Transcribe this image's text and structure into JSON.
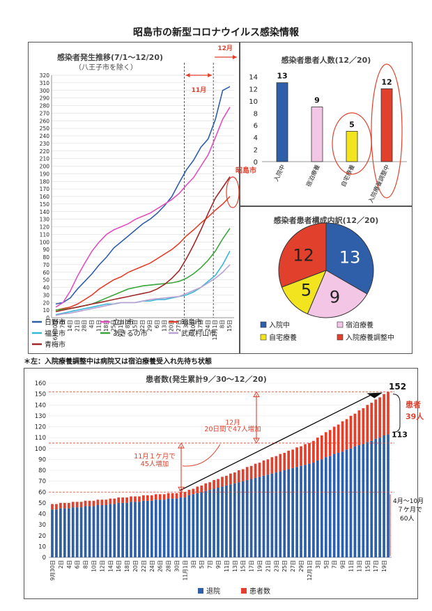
{
  "page_title": "昭島市の新型コロナウイルス感染情報",
  "note": "＊左：入院療養調整中は病院又は宿泊療養受入れ先待ち状態",
  "chart_data": [
    {
      "type": "line",
      "title": "感染者発生推移(7/1～12/20)",
      "subtitle": "（八王子市を除く）",
      "ylim": [
        0,
        320
      ],
      "yticks": [
        0,
        10,
        20,
        30,
        40,
        50,
        60,
        70,
        80,
        90,
        100,
        110,
        120,
        130,
        140,
        150,
        160,
        170,
        180,
        190,
        200,
        210,
        220,
        230,
        240,
        250,
        260,
        270,
        280,
        290,
        300,
        310,
        320
      ],
      "x_tick_labels": [
        "6月30日",
        "7日",
        "14日",
        "21日",
        "28日",
        "4日",
        "11日",
        "18日",
        "25日",
        "9月1日",
        "8日",
        "15日",
        "22日",
        "29日",
        "6日",
        "13日",
        "20日",
        "27日",
        "3日",
        "10日",
        "17日",
        "24日",
        "12月1日",
        "8日",
        "15日"
      ],
      "annotations": {
        "nov": "11月",
        "dec": "12月",
        "akishima": "昭島市"
      },
      "series": [
        {
          "name": "日野市",
          "color": "#2e5fa8",
          "values": [
            18,
            20,
            26,
            38,
            48,
            58,
            70,
            80,
            92,
            100,
            108,
            116,
            124,
            130,
            138,
            148,
            160,
            178,
            195,
            208,
            225,
            236,
            262,
            300,
            305
          ]
        },
        {
          "name": "立川市",
          "color": "#e050c0",
          "values": [
            14,
            20,
            35,
            55,
            72,
            88,
            100,
            110,
            116,
            120,
            124,
            130,
            134,
            138,
            144,
            150,
            156,
            164,
            175,
            185,
            200,
            215,
            238,
            262,
            278
          ]
        },
        {
          "name": "昭島市",
          "color": "#e0402c",
          "values": [
            10,
            12,
            14,
            18,
            24,
            30,
            38,
            44,
            50,
            54,
            60,
            64,
            68,
            72,
            78,
            84,
            90,
            98,
            108,
            116,
            125,
            133,
            142,
            150,
            160
          ]
        },
        {
          "name": "福生市",
          "color": "#35b8d8",
          "values": [
            4,
            6,
            8,
            10,
            12,
            14,
            16,
            18,
            18,
            20,
            20,
            20,
            22,
            22,
            24,
            24,
            26,
            28,
            30,
            34,
            40,
            48,
            56,
            70,
            88
          ]
        },
        {
          "name": "あきるの市",
          "color": "#3aa53a",
          "values": [
            10,
            11,
            12,
            14,
            16,
            18,
            22,
            26,
            30,
            34,
            38,
            40,
            42,
            43,
            44,
            45,
            46,
            48,
            52,
            58,
            66,
            76,
            88,
            104,
            118
          ]
        },
        {
          "name": "武蔵村山市",
          "color": "#b8a0d0",
          "values": [
            3,
            5,
            6,
            8,
            10,
            12,
            14,
            16,
            18,
            20,
            20,
            20,
            22,
            24,
            25,
            26,
            27,
            28,
            32,
            36,
            40,
            46,
            52,
            60,
            70
          ]
        },
        {
          "name": "青梅市",
          "color": "#a02828",
          "values": [
            8,
            10,
            12,
            14,
            16,
            18,
            20,
            22,
            24,
            26,
            28,
            30,
            32,
            34,
            38,
            44,
            52,
            62,
            78,
            96,
            116,
            138,
            158,
            172,
            186
          ]
        }
      ]
    },
    {
      "type": "bar",
      "title": "感染者患者人数(12／20)",
      "ylim": [
        0,
        14
      ],
      "yticks": [
        0,
        2,
        4,
        6,
        8,
        10,
        12,
        14
      ],
      "categories": [
        "入院中",
        "宿泊療養",
        "自宅療養",
        "入院療養調整中"
      ],
      "values": [
        13,
        9,
        5,
        12
      ],
      "colors": [
        "#2e5fa8",
        "#f4c6e6",
        "#f2e520",
        "#e0402c"
      ]
    },
    {
      "type": "pie",
      "title": "感染者患者構成内訳(12／20)",
      "categories": [
        "入院中",
        "宿泊療養",
        "自宅療養",
        "入院療養調整中"
      ],
      "values": [
        13,
        9,
        5,
        12
      ],
      "colors": [
        "#2e5fa8",
        "#f4c6e6",
        "#f2e520",
        "#e0402c"
      ]
    },
    {
      "type": "bar",
      "title": "患者数(発生累計9／30～12／20)",
      "ylim": [
        0,
        160
      ],
      "yticks": [
        0,
        10,
        20,
        30,
        40,
        50,
        60,
        70,
        80,
        90,
        100,
        110,
        120,
        130,
        140,
        150,
        160
      ],
      "x_tick_labels": [
        "9月30日",
        "2日",
        "4日",
        "6日",
        "8日",
        "10日",
        "12日",
        "14日",
        "16日",
        "18日",
        "20日",
        "22日",
        "24日",
        "26日",
        "28日",
        "30日",
        "11月1日",
        "3日",
        "5日",
        "7日",
        "9日",
        "11日",
        "13日",
        "15日",
        "17日",
        "19日",
        "21日",
        "23日",
        "25日",
        "27日",
        "29日",
        "12月1日",
        "3日",
        "5日",
        "7日",
        "9日",
        "11日",
        "13日",
        "15日",
        "17日",
        "19日"
      ],
      "start_value": 49,
      "end_value": 152,
      "end_discharged": 113,
      "series": [
        {
          "name": "退院",
          "color": "#2e5fa8"
        },
        {
          "name": "患者数",
          "color": "#e0402c"
        }
      ],
      "annotations": {
        "peak": "152",
        "discharged": "113",
        "patients": "患者",
        "patients_count": "39人",
        "dec_note_1": "12月",
        "dec_note_2": "20日間で47人増加",
        "nov_note_1": "11月１ケ月で",
        "nov_note_2": "45人増加",
        "early_1": "4月～10月",
        "early_2": "７ケ月で",
        "early_3": "60人"
      }
    }
  ]
}
